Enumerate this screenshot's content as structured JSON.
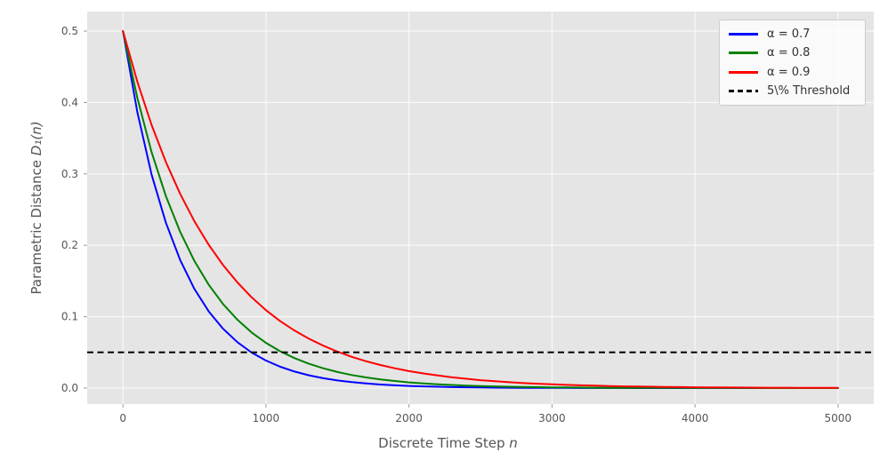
{
  "figure": {
    "background": "#ffffff",
    "plot_background": "#e5e5e5",
    "grid_color": "#fafafa",
    "tick_color": "#999999",
    "tick_label_color": "#555555",
    "axis_label_color": "#555555"
  },
  "chart_data": {
    "type": "line",
    "title": "",
    "xlabel_prefix": "Discrete Time Step ",
    "xlabel_math": "n",
    "ylabel_prefix": "Parametric Distance ",
    "ylabel_math": "D₁(n)",
    "xlim": [
      -250,
      5250
    ],
    "ylim": [
      -0.0224,
      0.5274
    ],
    "xticks": [
      "0",
      "1000",
      "2000",
      "3000",
      "4000",
      "5000"
    ],
    "yticks": [
      "0.0",
      "0.1",
      "0.2",
      "0.3",
      "0.4",
      "0.5"
    ],
    "grid": true,
    "legend_position": "upper right",
    "x": [
      0,
      100,
      200,
      300,
      400,
      500,
      600,
      700,
      800,
      900,
      1000,
      1100,
      1200,
      1300,
      1400,
      1500,
      1600,
      1700,
      1800,
      1900,
      2000,
      2100,
      2200,
      2300,
      2400,
      2500,
      2600,
      2700,
      2800,
      2900,
      3000,
      3100,
      3200,
      3300,
      3400,
      3500,
      3600,
      3700,
      3800,
      3900,
      4000,
      4100,
      4200,
      4300,
      4400,
      4500,
      4600,
      4700,
      4800,
      4900,
      5000
    ],
    "series": [
      {
        "name": "α = 0.7",
        "color": "#0000ff",
        "style": "solid",
        "values": [
          0.5,
          0.3869,
          0.2994,
          0.2317,
          0.1793,
          0.1388,
          0.1074,
          0.0831,
          0.0643,
          0.0498,
          0.0385,
          0.0298,
          0.0231,
          0.0179,
          0.0138,
          0.0107,
          0.0083,
          0.0064,
          0.005,
          0.0038,
          0.003,
          0.0023,
          0.0018,
          0.0014,
          0.0011,
          0.0008,
          0.0006,
          0.0005,
          0.0004,
          0.0003,
          0.0002,
          0.0002,
          0.0001,
          0.0001,
          0.0001,
          0.0001,
          0.0,
          0.0,
          0.0,
          0.0,
          0.0,
          0.0,
          0.0,
          0.0,
          0.0,
          0.0,
          0.0,
          0.0,
          0.0,
          0.0,
          0.0
        ]
      },
      {
        "name": "α = 0.8",
        "color": "#008000",
        "style": "solid",
        "values": [
          0.5,
          0.4067,
          0.3308,
          0.269,
          0.2188,
          0.178,
          0.1447,
          0.1177,
          0.0958,
          0.0779,
          0.0633,
          0.0515,
          0.0419,
          0.0341,
          0.0277,
          0.0225,
          0.0183,
          0.0149,
          0.0121,
          0.0099,
          0.008,
          0.0065,
          0.0053,
          0.0043,
          0.0035,
          0.0029,
          0.0023,
          0.0019,
          0.0015,
          0.0013,
          0.001,
          0.0008,
          0.0007,
          0.0005,
          0.0004,
          0.0004,
          0.0003,
          0.0002,
          0.0002,
          0.0002,
          0.0001,
          0.0001,
          0.0001,
          0.0001,
          0.0001,
          0.0,
          0.0,
          0.0,
          0.0,
          0.0,
          0.0
        ]
      },
      {
        "name": "α = 0.9",
        "color": "#ff0000",
        "style": "solid",
        "values": [
          0.5,
          0.4294,
          0.3688,
          0.3167,
          0.272,
          0.2336,
          0.2006,
          0.1723,
          0.148,
          0.1271,
          0.1091,
          0.0937,
          0.0805,
          0.0691,
          0.0594,
          0.051,
          0.0438,
          0.0376,
          0.0323,
          0.0277,
          0.0238,
          0.0205,
          0.0176,
          0.0151,
          0.013,
          0.0111,
          0.0096,
          0.0082,
          0.007,
          0.0061,
          0.0052,
          0.0045,
          0.0038,
          0.0033,
          0.0028,
          0.0024,
          0.0021,
          0.0018,
          0.0015,
          0.0013,
          0.0011,
          0.001,
          0.0008,
          0.0007,
          0.0006,
          0.0005,
          0.0005,
          0.0004,
          0.0003,
          0.0003,
          0.0002
        ]
      }
    ],
    "threshold": {
      "label": "5\\% Threshold",
      "value": 0.05,
      "color": "#000000",
      "style": "dashed"
    }
  }
}
